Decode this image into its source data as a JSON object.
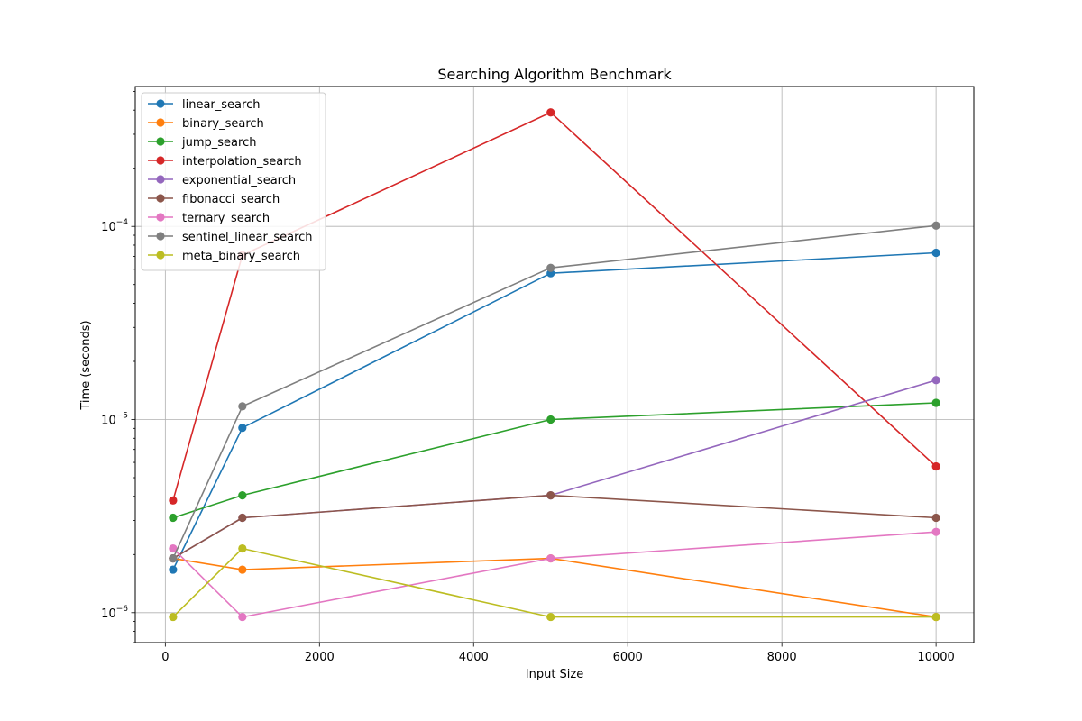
{
  "chart_data": {
    "type": "line",
    "title": "Searching Algorithm Benchmark",
    "xlabel": "Input Size",
    "ylabel": "Time (seconds)",
    "x": [
      100,
      1000,
      5000,
      10000
    ],
    "xlim": [
      -390,
      10490
    ],
    "ylim": [
      7e-07,
      0.00053
    ],
    "yscale": "log",
    "xticks": [
      0,
      2000,
      4000,
      6000,
      8000,
      10000
    ],
    "xtick_labels": [
      "0",
      "2000",
      "4000",
      "6000",
      "8000",
      "10000"
    ],
    "yticks": [
      1e-06,
      1e-05,
      0.0001
    ],
    "grid": true,
    "legend_position": "upper-left",
    "series": [
      {
        "name": "linear_search",
        "color": "#1f77b4",
        "values": [
          1.67e-06,
          9.06e-06,
          5.72e-05,
          7.3e-05
        ]
      },
      {
        "name": "binary_search",
        "color": "#ff7f0e",
        "values": [
          1.91e-06,
          1.67e-06,
          1.91e-06,
          9.5e-07
        ]
      },
      {
        "name": "jump_search",
        "color": "#2ca02c",
        "values": [
          3.1e-06,
          4.05e-06,
          1e-05,
          1.22e-05
        ]
      },
      {
        "name": "interpolation_search",
        "color": "#d62728",
        "values": [
          3.81e-06,
          7.1e-05,
          0.000389,
          5.72e-06
        ]
      },
      {
        "name": "exponential_search",
        "color": "#9467bd",
        "values": [
          1.91e-06,
          3.1e-06,
          4.05e-06,
          1.6e-05
        ]
      },
      {
        "name": "fibonacci_search",
        "color": "#8c564b",
        "values": [
          1.91e-06,
          3.1e-06,
          4.05e-06,
          3.1e-06
        ]
      },
      {
        "name": "ternary_search",
        "color": "#e377c2",
        "values": [
          2.15e-06,
          9.5e-07,
          1.91e-06,
          2.62e-06
        ]
      },
      {
        "name": "sentinel_linear_search",
        "color": "#7f7f7f",
        "values": [
          1.91e-06,
          1.17e-05,
          6.1e-05,
          0.000101
        ]
      },
      {
        "name": "meta_binary_search",
        "color": "#bcbd22",
        "values": [
          9.5e-07,
          2.15e-06,
          9.5e-07,
          9.5e-07
        ]
      }
    ]
  }
}
